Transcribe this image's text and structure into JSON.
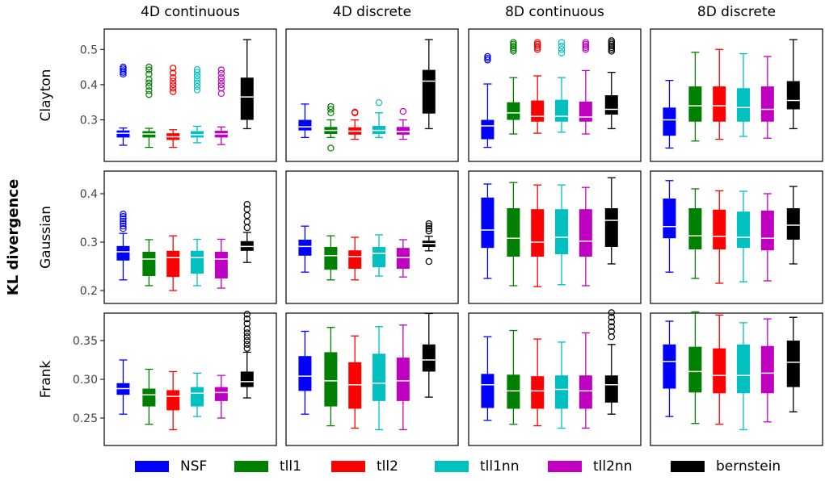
{
  "chart_data": {
    "type": "boxplot",
    "ylabel": "KL divergence",
    "column_titles": [
      "4D continuous",
      "4D discrete",
      "8D continuous",
      "8D discrete"
    ],
    "row_labels": [
      "Clayton",
      "Gaussian",
      "Frank"
    ],
    "row_ticks": [
      [
        "0.3",
        "0.4",
        "0.5"
      ],
      [
        "0.2",
        "0.3",
        "0.4"
      ],
      [
        "0.25",
        "0.30",
        "0.35"
      ]
    ],
    "row_ranges": [
      [
        0.205,
        0.535
      ],
      [
        0.19,
        0.43
      ],
      [
        0.225,
        0.375
      ]
    ],
    "methods": [
      {
        "name": "NSF",
        "color": "#0000ff"
      },
      {
        "name": "tll1",
        "color": "#008000"
      },
      {
        "name": "tll2",
        "color": "#ff0000"
      },
      {
        "name": "tll1nn",
        "color": "#00c0c0"
      },
      {
        "name": "tll2nn",
        "color": "#c000c0"
      },
      {
        "name": "bernstein",
        "color": "#000000"
      }
    ],
    "boxes": [
      [
        [
          {
            "wlo": 0.228,
            "q1": 0.25,
            "med": 0.262,
            "q3": 0.27,
            "whi": 0.277,
            "out": [
              0.43,
              0.435,
              0.44,
              0.445,
              0.45
            ]
          },
          {
            "wlo": 0.222,
            "q1": 0.25,
            "med": 0.26,
            "q3": 0.268,
            "whi": 0.276,
            "out": [
              0.372,
              0.383,
              0.395,
              0.405,
              0.415,
              0.43,
              0.442,
              0.45
            ]
          },
          {
            "wlo": 0.222,
            "q1": 0.243,
            "med": 0.252,
            "q3": 0.262,
            "whi": 0.272,
            "out": [
              0.38,
              0.39,
              0.4,
              0.41,
              0.42,
              0.433,
              0.447
            ]
          },
          {
            "wlo": 0.235,
            "q1": 0.25,
            "med": 0.258,
            "q3": 0.268,
            "whi": 0.282,
            "out": [
              0.385,
              0.395,
              0.405,
              0.415,
              0.425,
              0.435,
              0.443
            ]
          },
          {
            "wlo": 0.23,
            "q1": 0.25,
            "med": 0.26,
            "q3": 0.269,
            "whi": 0.28,
            "out": [
              0.375,
              0.39,
              0.4,
              0.41,
              0.42,
              0.432,
              0.442
            ]
          },
          {
            "wlo": 0.275,
            "q1": 0.3,
            "med": 0.365,
            "q3": 0.42,
            "whi": 0.528,
            "out": []
          }
        ],
        [
          {
            "wlo": 0.25,
            "q1": 0.27,
            "med": 0.28,
            "q3": 0.3,
            "whi": 0.345,
            "out": []
          },
          {
            "wlo": 0.25,
            "q1": 0.26,
            "med": 0.27,
            "q3": 0.28,
            "whi": 0.3,
            "out": [
              0.22,
              0.32,
              0.33,
              0.338
            ]
          },
          {
            "wlo": 0.245,
            "q1": 0.258,
            "med": 0.268,
            "q3": 0.279,
            "whi": 0.3,
            "out": [
              0.32,
              0.322
            ]
          },
          {
            "wlo": 0.25,
            "q1": 0.26,
            "med": 0.27,
            "q3": 0.283,
            "whi": 0.32,
            "out": [
              0.349
            ]
          },
          {
            "wlo": 0.245,
            "q1": 0.258,
            "med": 0.267,
            "q3": 0.28,
            "whi": 0.3,
            "out": [
              0.324
            ]
          },
          {
            "wlo": 0.275,
            "q1": 0.318,
            "med": 0.41,
            "q3": 0.442,
            "whi": 0.528,
            "out": []
          }
        ],
        [
          {
            "wlo": 0.222,
            "q1": 0.245,
            "med": 0.283,
            "q3": 0.3,
            "whi": 0.402,
            "out": [
              0.47,
              0.475,
              0.48
            ]
          },
          {
            "wlo": 0.26,
            "q1": 0.3,
            "med": 0.32,
            "q3": 0.35,
            "whi": 0.42,
            "out": [
              0.495,
              0.5,
              0.505,
              0.51,
              0.515,
              0.52
            ]
          },
          {
            "wlo": 0.262,
            "q1": 0.295,
            "med": 0.31,
            "q3": 0.355,
            "whi": 0.425,
            "out": [
              0.5,
              0.505,
              0.51,
              0.515,
              0.52
            ]
          },
          {
            "wlo": 0.265,
            "q1": 0.295,
            "med": 0.31,
            "q3": 0.357,
            "whi": 0.42,
            "out": [
              0.49,
              0.5,
              0.51,
              0.52
            ]
          },
          {
            "wlo": 0.26,
            "q1": 0.295,
            "med": 0.308,
            "q3": 0.352,
            "whi": 0.44,
            "out": [
              0.5,
              0.505,
              0.51,
              0.515,
              0.52
            ]
          },
          {
            "wlo": 0.275,
            "q1": 0.315,
            "med": 0.33,
            "q3": 0.37,
            "whi": 0.435,
            "out": [
              0.495,
              0.5,
              0.505,
              0.51,
              0.515,
              0.52,
              0.525
            ]
          }
        ],
        [
          {
            "wlo": 0.22,
            "q1": 0.255,
            "med": 0.3,
            "q3": 0.335,
            "whi": 0.412,
            "out": []
          },
          {
            "wlo": 0.24,
            "q1": 0.295,
            "med": 0.34,
            "q3": 0.395,
            "whi": 0.492,
            "out": []
          },
          {
            "wlo": 0.245,
            "q1": 0.295,
            "med": 0.34,
            "q3": 0.395,
            "whi": 0.5,
            "out": []
          },
          {
            "wlo": 0.253,
            "q1": 0.295,
            "med": 0.335,
            "q3": 0.39,
            "whi": 0.488,
            "out": []
          },
          {
            "wlo": 0.248,
            "q1": 0.295,
            "med": 0.33,
            "q3": 0.395,
            "whi": 0.48,
            "out": []
          },
          {
            "wlo": 0.275,
            "q1": 0.33,
            "med": 0.355,
            "q3": 0.41,
            "whi": 0.528,
            "out": []
          }
        ]
      ],
      [
        [
          {
            "wlo": 0.222,
            "q1": 0.262,
            "med": 0.28,
            "q3": 0.292,
            "whi": 0.318,
            "out": [
              0.328,
              0.333,
              0.338,
              0.343,
              0.348,
              0.353,
              0.358
            ]
          },
          {
            "wlo": 0.21,
            "q1": 0.23,
            "med": 0.265,
            "q3": 0.28,
            "whi": 0.305,
            "out": []
          },
          {
            "wlo": 0.2,
            "q1": 0.228,
            "med": 0.268,
            "q3": 0.282,
            "whi": 0.313,
            "out": []
          },
          {
            "wlo": 0.21,
            "q1": 0.235,
            "med": 0.268,
            "q3": 0.282,
            "whi": 0.306,
            "out": []
          },
          {
            "wlo": 0.205,
            "q1": 0.225,
            "med": 0.265,
            "q3": 0.28,
            "whi": 0.306,
            "out": []
          },
          {
            "wlo": 0.258,
            "q1": 0.282,
            "med": 0.291,
            "q3": 0.302,
            "whi": 0.32,
            "out": [
              0.33,
              0.342,
              0.355,
              0.368,
              0.378
            ]
          }
        ],
        [
          {
            "wlo": 0.238,
            "q1": 0.272,
            "med": 0.291,
            "q3": 0.305,
            "whi": 0.333,
            "out": []
          },
          {
            "wlo": 0.222,
            "q1": 0.243,
            "med": 0.272,
            "q3": 0.29,
            "whi": 0.313,
            "out": []
          },
          {
            "wlo": 0.222,
            "q1": 0.245,
            "med": 0.27,
            "q3": 0.283,
            "whi": 0.31,
            "out": []
          },
          {
            "wlo": 0.23,
            "q1": 0.248,
            "med": 0.277,
            "q3": 0.29,
            "whi": 0.315,
            "out": []
          },
          {
            "wlo": 0.228,
            "q1": 0.245,
            "med": 0.268,
            "q3": 0.288,
            "whi": 0.305,
            "out": []
          },
          {
            "wlo": 0.282,
            "q1": 0.29,
            "med": 0.297,
            "q3": 0.303,
            "whi": 0.312,
            "out": [
              0.26,
              0.323,
              0.328,
              0.333,
              0.338
            ]
          }
        ],
        [
          {
            "wlo": 0.225,
            "q1": 0.288,
            "med": 0.325,
            "q3": 0.392,
            "whi": 0.42,
            "out": []
          },
          {
            "wlo": 0.21,
            "q1": 0.27,
            "med": 0.308,
            "q3": 0.37,
            "whi": 0.423,
            "out": []
          },
          {
            "wlo": 0.208,
            "q1": 0.27,
            "med": 0.3,
            "q3": 0.368,
            "whi": 0.418,
            "out": []
          },
          {
            "wlo": 0.212,
            "q1": 0.275,
            "med": 0.31,
            "q3": 0.368,
            "whi": 0.418,
            "out": []
          },
          {
            "wlo": 0.21,
            "q1": 0.27,
            "med": 0.302,
            "q3": 0.368,
            "whi": 0.413,
            "out": []
          },
          {
            "wlo": 0.255,
            "q1": 0.29,
            "med": 0.345,
            "q3": 0.37,
            "whi": 0.433,
            "out": []
          }
        ],
        [
          {
            "wlo": 0.238,
            "q1": 0.308,
            "med": 0.332,
            "q3": 0.39,
            "whi": 0.427,
            "out": []
          },
          {
            "wlo": 0.225,
            "q1": 0.285,
            "med": 0.313,
            "q3": 0.37,
            "whi": 0.41,
            "out": []
          },
          {
            "wlo": 0.215,
            "q1": 0.285,
            "med": 0.312,
            "q3": 0.367,
            "whi": 0.406,
            "out": []
          },
          {
            "wlo": 0.218,
            "q1": 0.288,
            "med": 0.31,
            "q3": 0.363,
            "whi": 0.405,
            "out": []
          },
          {
            "wlo": 0.22,
            "q1": 0.283,
            "med": 0.308,
            "q3": 0.365,
            "whi": 0.4,
            "out": []
          },
          {
            "wlo": 0.255,
            "q1": 0.305,
            "med": 0.335,
            "q3": 0.37,
            "whi": 0.415,
            "out": []
          }
        ]
      ],
      [
        [
          {
            "wlo": 0.255,
            "q1": 0.28,
            "med": 0.288,
            "q3": 0.295,
            "whi": 0.325,
            "out": []
          },
          {
            "wlo": 0.242,
            "q1": 0.265,
            "med": 0.28,
            "q3": 0.288,
            "whi": 0.313,
            "out": []
          },
          {
            "wlo": 0.235,
            "q1": 0.26,
            "med": 0.278,
            "q3": 0.286,
            "whi": 0.31,
            "out": []
          },
          {
            "wlo": 0.252,
            "q1": 0.265,
            "med": 0.282,
            "q3": 0.29,
            "whi": 0.308,
            "out": []
          },
          {
            "wlo": 0.25,
            "q1": 0.272,
            "med": 0.283,
            "q3": 0.29,
            "whi": 0.305,
            "out": []
          },
          {
            "wlo": 0.276,
            "q1": 0.29,
            "med": 0.297,
            "q3": 0.31,
            "whi": 0.335,
            "out": [
              0.34,
              0.345,
              0.35,
              0.355,
              0.36,
              0.365,
              0.372,
              0.378,
              0.384
            ]
          }
        ],
        [
          {
            "wlo": 0.255,
            "q1": 0.285,
            "med": 0.304,
            "q3": 0.33,
            "whi": 0.362,
            "out": []
          },
          {
            "wlo": 0.24,
            "q1": 0.265,
            "med": 0.298,
            "q3": 0.335,
            "whi": 0.367,
            "out": []
          },
          {
            "wlo": 0.237,
            "q1": 0.262,
            "med": 0.293,
            "q3": 0.322,
            "whi": 0.356,
            "out": []
          },
          {
            "wlo": 0.235,
            "q1": 0.272,
            "med": 0.295,
            "q3": 0.333,
            "whi": 0.368,
            "out": []
          },
          {
            "wlo": 0.235,
            "q1": 0.272,
            "med": 0.298,
            "q3": 0.328,
            "whi": 0.37,
            "out": []
          },
          {
            "wlo": 0.277,
            "q1": 0.31,
            "med": 0.325,
            "q3": 0.345,
            "whi": 0.385,
            "out": []
          }
        ],
        [
          {
            "wlo": 0.247,
            "q1": 0.263,
            "med": 0.293,
            "q3": 0.307,
            "whi": 0.355,
            "out": []
          },
          {
            "wlo": 0.242,
            "q1": 0.262,
            "med": 0.285,
            "q3": 0.306,
            "whi": 0.363,
            "out": []
          },
          {
            "wlo": 0.24,
            "q1": 0.262,
            "med": 0.285,
            "q3": 0.304,
            "whi": 0.352,
            "out": []
          },
          {
            "wlo": 0.237,
            "q1": 0.262,
            "med": 0.287,
            "q3": 0.305,
            "whi": 0.348,
            "out": []
          },
          {
            "wlo": 0.237,
            "q1": 0.262,
            "med": 0.285,
            "q3": 0.305,
            "whi": 0.36,
            "out": []
          },
          {
            "wlo": 0.255,
            "q1": 0.27,
            "med": 0.293,
            "q3": 0.305,
            "whi": 0.345,
            "out": [
              0.355,
              0.362,
              0.368,
              0.374,
              0.38,
              0.386
            ]
          }
        ],
        [
          {
            "wlo": 0.252,
            "q1": 0.288,
            "med": 0.323,
            "q3": 0.345,
            "whi": 0.375,
            "out": []
          },
          {
            "wlo": 0.243,
            "q1": 0.283,
            "med": 0.31,
            "q3": 0.342,
            "whi": 0.387,
            "out": []
          },
          {
            "wlo": 0.242,
            "q1": 0.282,
            "med": 0.305,
            "q3": 0.34,
            "whi": 0.383,
            "out": []
          },
          {
            "wlo": 0.235,
            "q1": 0.282,
            "med": 0.305,
            "q3": 0.345,
            "whi": 0.373,
            "out": []
          },
          {
            "wlo": 0.245,
            "q1": 0.282,
            "med": 0.308,
            "q3": 0.343,
            "whi": 0.378,
            "out": []
          },
          {
            "wlo": 0.258,
            "q1": 0.29,
            "med": 0.322,
            "q3": 0.35,
            "whi": 0.38,
            "out": []
          }
        ]
      ]
    ]
  }
}
